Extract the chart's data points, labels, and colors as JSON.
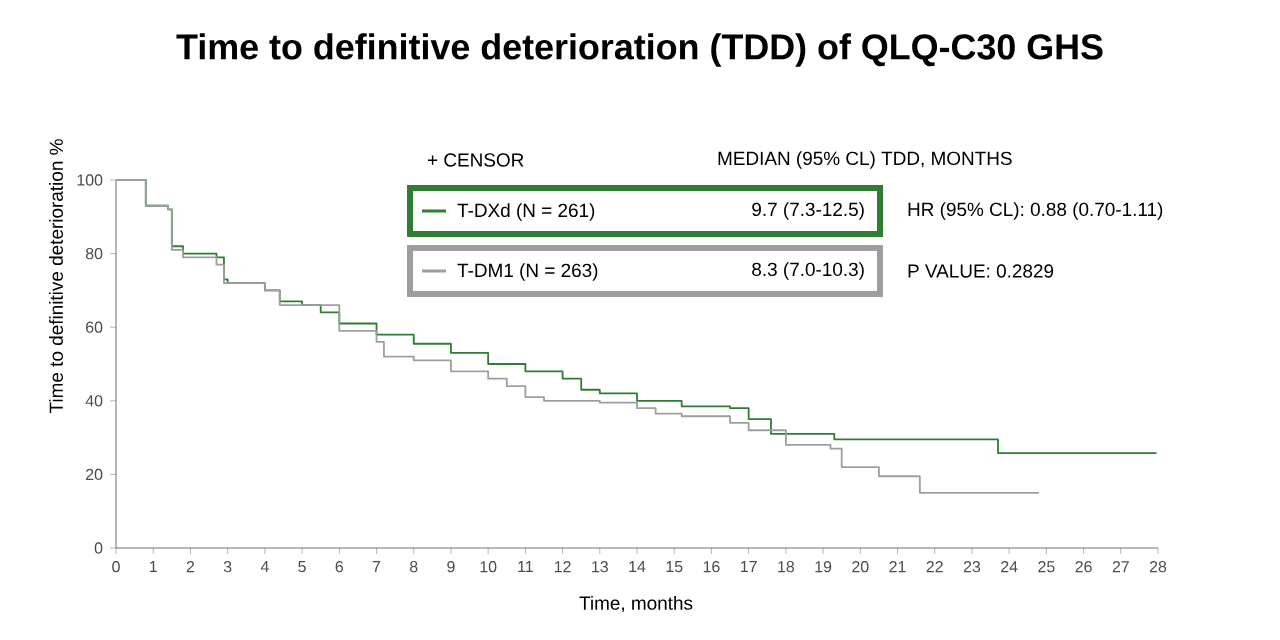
{
  "chart_data": {
    "type": "step",
    "title": "Time to definitive deterioration (TDD) of QLQ-C30 GHS",
    "xlabel": "Time, months",
    "ylabel": "Time to definitive deterioration %",
    "xlim": [
      0,
      28
    ],
    "xticks": [
      0,
      1,
      2,
      3,
      4,
      5,
      6,
      7,
      8,
      9,
      10,
      11,
      12,
      13,
      14,
      15,
      16,
      17,
      18,
      19,
      20,
      21,
      22,
      23,
      24,
      25,
      26,
      27,
      28
    ],
    "ylim": [
      0,
      100
    ],
    "yticks": [
      0,
      20,
      40,
      60,
      80,
      100
    ],
    "legend": "top",
    "series": [
      {
        "name": "T-DXd (N = 261)",
        "color": "#2e7d32",
        "x": [
          0,
          0.8,
          1.4,
          1.5,
          1.8,
          2.7,
          2.9,
          3.0,
          4.0,
          4.4,
          5.0,
          5.5,
          6.0,
          7.0,
          8.0,
          9.0,
          10.0,
          11.0,
          12.0,
          12.5,
          13.0,
          14.0,
          15.2,
          16.5,
          17.0,
          17.6,
          19.3,
          23.7,
          27.96
        ],
        "values": [
          100,
          93,
          92,
          82,
          80,
          79,
          73,
          72,
          70,
          67,
          66,
          64,
          61,
          58,
          55.5,
          53,
          50,
          48,
          46,
          43,
          42,
          40,
          38.5,
          38,
          35,
          31,
          29.5,
          25.8,
          25.8
        ]
      },
      {
        "name": "T-DM1 (N = 263)",
        "color": "#9e9e9e",
        "x": [
          0,
          0.8,
          1.4,
          1.5,
          1.8,
          2.7,
          2.9,
          4.0,
          4.4,
          6.0,
          7.0,
          7.2,
          8.0,
          9.0,
          10.0,
          10.5,
          11.0,
          11.5,
          13.0,
          14.0,
          14.5,
          15.2,
          16.5,
          17.0,
          18.0,
          19.2,
          19.5,
          20.5,
          21.6,
          24.8
        ],
        "values": [
          100,
          93,
          92,
          81,
          79,
          77,
          72,
          70,
          66,
          59,
          56,
          52,
          51,
          48,
          46,
          44,
          41,
          40,
          39.5,
          38,
          36.5,
          35.8,
          34,
          32,
          28,
          27,
          22,
          19.5,
          15,
          15
        ]
      }
    ],
    "annotations": [
      "+ CENSOR",
      "MEDIAN (95% CL) TDD, MONTHS",
      "9.7 (7.3-12.5)",
      "8.3 (7.0-10.3)",
      "HR (95% CL): 0.88 (0.70-1.11)",
      "P VALUE: 0.2829"
    ]
  }
}
